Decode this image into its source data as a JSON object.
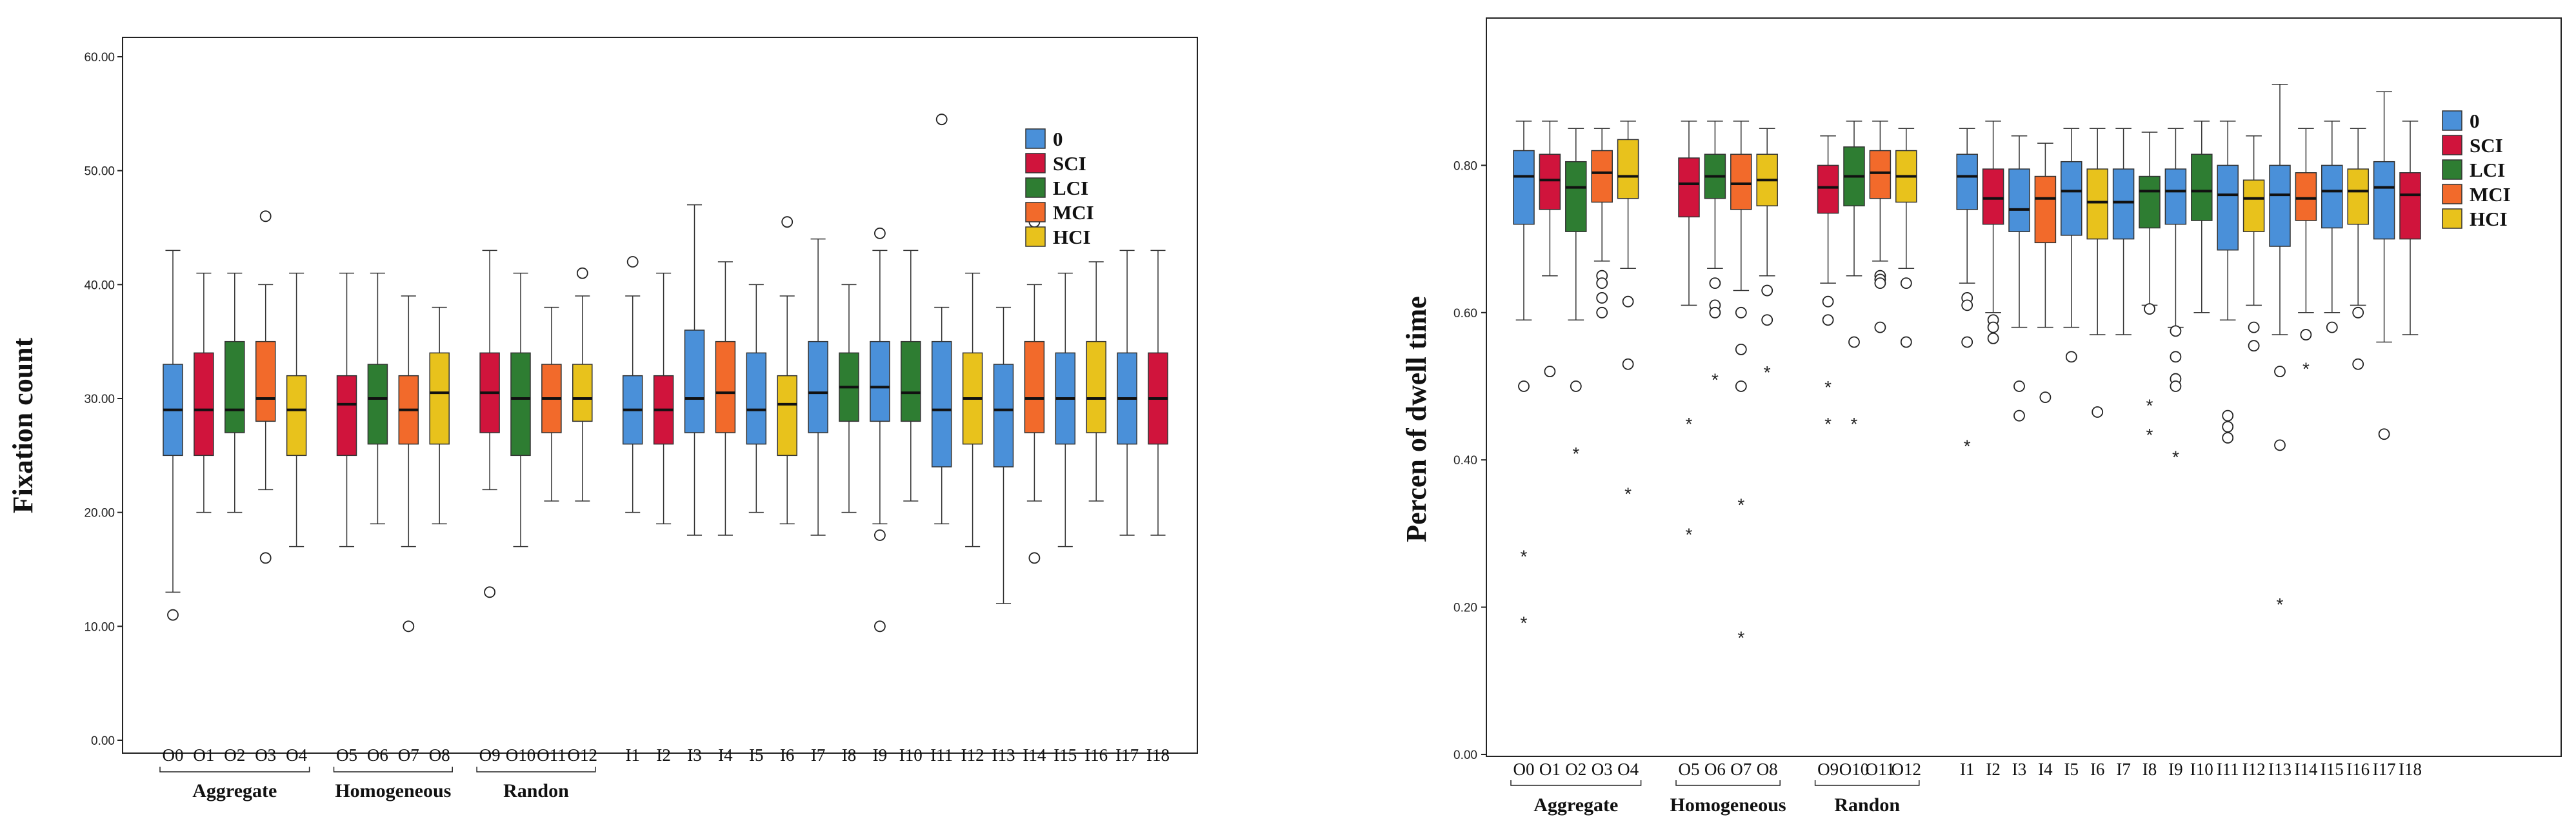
{
  "colors": {
    "0": "#4a90d9",
    "SCI": "#d0143c",
    "LCI": "#2e7d32",
    "MCI": "#f26a2b",
    "HCI": "#e8c21c"
  },
  "chart_data": [
    {
      "type": "boxplot",
      "ylabel": "Fixation count",
      "ylim": [
        0,
        60
      ],
      "yticks": [
        "0.00",
        "10.00",
        "20.00",
        "30.00",
        "40.00",
        "50.00",
        "60.00"
      ],
      "legend": [
        "0",
        "SCI",
        "LCI",
        "MCI",
        "HCI"
      ],
      "legend_position": "top-right",
      "groups": [
        {
          "label": "Aggregate",
          "categories": [
            "O0",
            "O1",
            "O2",
            "O3",
            "O4"
          ]
        },
        {
          "label": "Homogeneous",
          "categories": [
            "O5",
            "O6",
            "O7",
            "O8"
          ]
        },
        {
          "label": "Randon",
          "categories": [
            "O9",
            "O10",
            "O11",
            "O12"
          ]
        },
        {
          "label": "",
          "categories": [
            "I1",
            "I2",
            "I3",
            "I4",
            "I5",
            "I6",
            "I7",
            "I8",
            "I9",
            "I10",
            "I11",
            "I12",
            "I13",
            "I14",
            "I15",
            "I16",
            "I17",
            "I18"
          ]
        }
      ],
      "boxes": [
        {
          "label": "O0",
          "color_key": "0",
          "min": 13,
          "q1": 25,
          "median": 29,
          "q3": 33,
          "max": 43,
          "outliers": [
            11
          ],
          "extremes": []
        },
        {
          "label": "O1",
          "color_key": "SCI",
          "min": 20,
          "q1": 25,
          "median": 29,
          "q3": 34,
          "max": 41,
          "outliers": [],
          "extremes": []
        },
        {
          "label": "O2",
          "color_key": "LCI",
          "min": 20,
          "q1": 27,
          "median": 29,
          "q3": 35,
          "max": 41,
          "outliers": [],
          "extremes": []
        },
        {
          "label": "O3",
          "color_key": "MCI",
          "min": 22,
          "q1": 28,
          "median": 30,
          "q3": 35,
          "max": 40,
          "outliers": [
            46,
            16
          ],
          "extremes": []
        },
        {
          "label": "O4",
          "color_key": "HCI",
          "min": 17,
          "q1": 25,
          "median": 29,
          "q3": 32,
          "max": 41,
          "outliers": [],
          "extremes": []
        },
        {
          "label": "O5",
          "color_key": "SCI",
          "min": 17,
          "q1": 25,
          "median": 29.5,
          "q3": 32,
          "max": 41,
          "outliers": [],
          "extremes": []
        },
        {
          "label": "O6",
          "color_key": "LCI",
          "min": 19,
          "q1": 26,
          "median": 30,
          "q3": 33,
          "max": 41,
          "outliers": [],
          "extremes": []
        },
        {
          "label": "O7",
          "color_key": "MCI",
          "min": 17,
          "q1": 26,
          "median": 29,
          "q3": 32,
          "max": 39,
          "outliers": [
            10
          ],
          "extremes": []
        },
        {
          "label": "O8",
          "color_key": "HCI",
          "min": 19,
          "q1": 26,
          "median": 30.5,
          "q3": 34,
          "max": 38,
          "outliers": [],
          "extremes": []
        },
        {
          "label": "O9",
          "color_key": "SCI",
          "min": 22,
          "q1": 27,
          "median": 30.5,
          "q3": 34,
          "max": 43,
          "outliers": [
            13
          ],
          "extremes": []
        },
        {
          "label": "O10",
          "color_key": "LCI",
          "min": 17,
          "q1": 25,
          "median": 30,
          "q3": 34,
          "max": 41,
          "outliers": [],
          "extremes": []
        },
        {
          "label": "O11",
          "color_key": "MCI",
          "min": 21,
          "q1": 27,
          "median": 30,
          "q3": 33,
          "max": 38,
          "outliers": [],
          "extremes": []
        },
        {
          "label": "O12",
          "color_key": "HCI",
          "min": 21,
          "q1": 28,
          "median": 30,
          "q3": 33,
          "max": 39,
          "outliers": [
            41
          ],
          "extremes": []
        },
        {
          "label": "I1",
          "color_key": "0",
          "min": 20,
          "q1": 26,
          "median": 29,
          "q3": 32,
          "max": 39,
          "outliers": [
            42
          ],
          "extremes": []
        },
        {
          "label": "I2",
          "color_key": "SCI",
          "min": 19,
          "q1": 26,
          "median": 29,
          "q3": 32,
          "max": 41,
          "outliers": [],
          "extremes": []
        },
        {
          "label": "I3",
          "color_key": "0",
          "min": 18,
          "q1": 27,
          "median": 30,
          "q3": 36,
          "max": 47,
          "outliers": [],
          "extremes": []
        },
        {
          "label": "I4",
          "color_key": "MCI",
          "min": 18,
          "q1": 27,
          "median": 30.5,
          "q3": 35,
          "max": 42,
          "outliers": [],
          "extremes": []
        },
        {
          "label": "I5",
          "color_key": "0",
          "min": 20,
          "q1": 26,
          "median": 29,
          "q3": 34,
          "max": 40,
          "outliers": [],
          "extremes": []
        },
        {
          "label": "I6",
          "color_key": "HCI",
          "min": 19,
          "q1": 25,
          "median": 29.5,
          "q3": 32,
          "max": 39,
          "outliers": [
            45.5
          ],
          "extremes": []
        },
        {
          "label": "I7",
          "color_key": "0",
          "min": 18,
          "q1": 27,
          "median": 30.5,
          "q3": 35,
          "max": 44,
          "outliers": [],
          "extremes": []
        },
        {
          "label": "I8",
          "color_key": "LCI",
          "min": 20,
          "q1": 28,
          "median": 31,
          "q3": 34,
          "max": 40,
          "outliers": [],
          "extremes": []
        },
        {
          "label": "I9",
          "color_key": "0",
          "min": 19,
          "q1": 28,
          "median": 31,
          "q3": 35,
          "max": 43,
          "outliers": [
            44.5,
            18,
            10
          ],
          "extremes": []
        },
        {
          "label": "I10",
          "color_key": "LCI",
          "min": 21,
          "q1": 28,
          "median": 30.5,
          "q3": 35,
          "max": 43,
          "outliers": [],
          "extremes": []
        },
        {
          "label": "I11",
          "color_key": "0",
          "min": 19,
          "q1": 24,
          "median": 29,
          "q3": 35,
          "max": 38,
          "outliers": [
            54.5
          ],
          "extremes": []
        },
        {
          "label": "I12",
          "color_key": "HCI",
          "min": 17,
          "q1": 26,
          "median": 30,
          "q3": 34,
          "max": 41,
          "outliers": [],
          "extremes": []
        },
        {
          "label": "I13",
          "color_key": "0",
          "min": 12,
          "q1": 24,
          "median": 29,
          "q3": 33,
          "max": 38,
          "outliers": [],
          "extremes": []
        },
        {
          "label": "I14",
          "color_key": "MCI",
          "min": 21,
          "q1": 27,
          "median": 30,
          "q3": 35,
          "max": 40,
          "outliers": [
            45.5,
            16
          ],
          "extremes": []
        },
        {
          "label": "I15",
          "color_key": "0",
          "min": 17,
          "q1": 26,
          "median": 30,
          "q3": 34,
          "max": 41,
          "outliers": [],
          "extremes": []
        },
        {
          "label": "I16",
          "color_key": "HCI",
          "min": 21,
          "q1": 27,
          "median": 30,
          "q3": 35,
          "max": 42,
          "outliers": [],
          "extremes": []
        },
        {
          "label": "I17",
          "color_key": "0",
          "min": 18,
          "q1": 26,
          "median": 30,
          "q3": 34,
          "max": 43,
          "outliers": [],
          "extremes": []
        },
        {
          "label": "I18",
          "color_key": "SCI",
          "min": 18,
          "q1": 26,
          "median": 30,
          "q3": 34,
          "max": 43,
          "outliers": [],
          "extremes": []
        }
      ]
    },
    {
      "type": "boxplot",
      "ylabel": "Percen of dwell time",
      "ylim": [
        0,
        1
      ],
      "yticks": [
        "0.00",
        "0.20",
        "0.40",
        "0.60",
        "0.80"
      ],
      "legend": [
        "0",
        "SCI",
        "LCI",
        "MCI",
        "HCI"
      ],
      "legend_position": "top-right",
      "groups": [
        {
          "label": "Aggregate",
          "categories": [
            "O0",
            "O1",
            "O2",
            "O3",
            "O4"
          ]
        },
        {
          "label": "Homogeneous",
          "categories": [
            "O5",
            "O6",
            "O7",
            "O8"
          ]
        },
        {
          "label": "Randon",
          "categories": [
            "O9",
            "O10",
            "O11",
            "O12"
          ]
        },
        {
          "label": "",
          "categories": [
            "I1",
            "I2",
            "I3",
            "I4",
            "I5",
            "I6",
            "I7",
            "I8",
            "I9",
            "I10",
            "I11",
            "I12",
            "I13",
            "I14",
            "I15",
            "I16",
            "I17",
            "I18"
          ]
        }
      ],
      "boxes": [
        {
          "label": "O0",
          "color_key": "0",
          "min": 0.59,
          "q1": 0.72,
          "median": 0.785,
          "q3": 0.82,
          "max": 0.86,
          "outliers": [
            0.5
          ],
          "extremes": [
            0.27,
            0.18
          ]
        },
        {
          "label": "O1",
          "color_key": "SCI",
          "min": 0.65,
          "q1": 0.74,
          "median": 0.78,
          "q3": 0.815,
          "max": 0.86,
          "outliers": [
            0.52
          ],
          "extremes": []
        },
        {
          "label": "O2",
          "color_key": "LCI",
          "min": 0.59,
          "q1": 0.71,
          "median": 0.77,
          "q3": 0.805,
          "max": 0.85,
          "outliers": [
            0.5
          ],
          "extremes": [
            0.41
          ]
        },
        {
          "label": "O3",
          "color_key": "MCI",
          "min": 0.67,
          "q1": 0.75,
          "median": 0.79,
          "q3": 0.82,
          "max": 0.85,
          "outliers": [
            0.65,
            0.64,
            0.62,
            0.6
          ],
          "extremes": []
        },
        {
          "label": "O4",
          "color_key": "HCI",
          "min": 0.66,
          "q1": 0.755,
          "median": 0.785,
          "q3": 0.835,
          "max": 0.86,
          "outliers": [
            0.615,
            0.53
          ],
          "extremes": [
            0.355
          ]
        },
        {
          "label": "O5",
          "color_key": "SCI",
          "min": 0.61,
          "q1": 0.73,
          "median": 0.775,
          "q3": 0.81,
          "max": 0.86,
          "outliers": [],
          "extremes": [
            0.45,
            0.3
          ]
        },
        {
          "label": "O6",
          "color_key": "LCI",
          "min": 0.66,
          "q1": 0.755,
          "median": 0.785,
          "q3": 0.815,
          "max": 0.86,
          "outliers": [
            0.64,
            0.61,
            0.6
          ],
          "extremes": [
            0.51
          ]
        },
        {
          "label": "O7",
          "color_key": "MCI",
          "min": 0.63,
          "q1": 0.74,
          "median": 0.775,
          "q3": 0.815,
          "max": 0.86,
          "outliers": [
            0.6,
            0.55,
            0.5
          ],
          "extremes": [
            0.34,
            0.16
          ]
        },
        {
          "label": "O8",
          "color_key": "HCI",
          "min": 0.65,
          "q1": 0.745,
          "median": 0.78,
          "q3": 0.815,
          "max": 0.85,
          "outliers": [
            0.63,
            0.59
          ],
          "extremes": [
            0.52
          ]
        },
        {
          "label": "O9",
          "color_key": "SCI",
          "min": 0.64,
          "q1": 0.735,
          "median": 0.77,
          "q3": 0.8,
          "max": 0.84,
          "outliers": [
            0.615,
            0.59
          ],
          "extremes": [
            0.5,
            0.45
          ]
        },
        {
          "label": "O10",
          "color_key": "LCI",
          "min": 0.65,
          "q1": 0.745,
          "median": 0.785,
          "q3": 0.825,
          "max": 0.86,
          "outliers": [
            0.56
          ],
          "extremes": [
            0.45
          ]
        },
        {
          "label": "O11",
          "color_key": "MCI",
          "min": 0.67,
          "q1": 0.755,
          "median": 0.79,
          "q3": 0.82,
          "max": 0.86,
          "outliers": [
            0.65,
            0.645,
            0.64,
            0.58
          ],
          "extremes": []
        },
        {
          "label": "O12",
          "color_key": "HCI",
          "min": 0.66,
          "q1": 0.75,
          "median": 0.785,
          "q3": 0.82,
          "max": 0.85,
          "outliers": [
            0.64,
            0.56
          ],
          "extremes": []
        },
        {
          "label": "I1",
          "color_key": "0",
          "min": 0.64,
          "q1": 0.74,
          "median": 0.785,
          "q3": 0.815,
          "max": 0.85,
          "outliers": [
            0.62,
            0.61,
            0.56
          ],
          "extremes": [
            0.42
          ]
        },
        {
          "label": "I2",
          "color_key": "SCI",
          "min": 0.6,
          "q1": 0.72,
          "median": 0.755,
          "q3": 0.795,
          "max": 0.86,
          "outliers": [
            0.59,
            0.58,
            0.565
          ],
          "extremes": []
        },
        {
          "label": "I3",
          "color_key": "0",
          "min": 0.58,
          "q1": 0.71,
          "median": 0.74,
          "q3": 0.795,
          "max": 0.84,
          "outliers": [
            0.5,
            0.46
          ],
          "extremes": []
        },
        {
          "label": "I4",
          "color_key": "MCI",
          "min": 0.58,
          "q1": 0.695,
          "median": 0.755,
          "q3": 0.785,
          "max": 0.83,
          "outliers": [
            0.485
          ],
          "extremes": []
        },
        {
          "label": "I5",
          "color_key": "0",
          "min": 0.58,
          "q1": 0.705,
          "median": 0.765,
          "q3": 0.805,
          "max": 0.85,
          "outliers": [
            0.54
          ],
          "extremes": []
        },
        {
          "label": "I6",
          "color_key": "HCI",
          "min": 0.57,
          "q1": 0.7,
          "median": 0.75,
          "q3": 0.795,
          "max": 0.85,
          "outliers": [
            0.465
          ],
          "extremes": []
        },
        {
          "label": "I7",
          "color_key": "0",
          "min": 0.57,
          "q1": 0.7,
          "median": 0.75,
          "q3": 0.795,
          "max": 0.85,
          "outliers": [],
          "extremes": []
        },
        {
          "label": "I8",
          "color_key": "LCI",
          "min": 0.61,
          "q1": 0.715,
          "median": 0.765,
          "q3": 0.785,
          "max": 0.845,
          "outliers": [
            0.605
          ],
          "extremes": [
            0.475,
            0.435
          ]
        },
        {
          "label": "I9",
          "color_key": "0",
          "min": 0.58,
          "q1": 0.72,
          "median": 0.765,
          "q3": 0.795,
          "max": 0.85,
          "outliers": [
            0.575,
            0.54,
            0.51,
            0.5
          ],
          "extremes": [
            0.405
          ]
        },
        {
          "label": "I10",
          "color_key": "LCI",
          "min": 0.6,
          "q1": 0.725,
          "median": 0.765,
          "q3": 0.815,
          "max": 0.86,
          "outliers": [],
          "extremes": []
        },
        {
          "label": "I11",
          "color_key": "0",
          "min": 0.59,
          "q1": 0.685,
          "median": 0.76,
          "q3": 0.8,
          "max": 0.86,
          "outliers": [
            0.46,
            0.445,
            0.43
          ],
          "extremes": []
        },
        {
          "label": "I12",
          "color_key": "HCI",
          "min": 0.61,
          "q1": 0.71,
          "median": 0.755,
          "q3": 0.78,
          "max": 0.84,
          "outliers": [
            0.58,
            0.555
          ],
          "extremes": []
        },
        {
          "label": "I13",
          "color_key": "0",
          "min": 0.57,
          "q1": 0.69,
          "median": 0.76,
          "q3": 0.8,
          "max": 0.91,
          "outliers": [
            0.52,
            0.42
          ],
          "extremes": [
            0.205
          ]
        },
        {
          "label": "I14",
          "color_key": "MCI",
          "min": 0.6,
          "q1": 0.725,
          "median": 0.755,
          "q3": 0.79,
          "max": 0.85,
          "outliers": [
            0.57
          ],
          "extremes": [
            0.525
          ]
        },
        {
          "label": "I15",
          "color_key": "0",
          "min": 0.6,
          "q1": 0.715,
          "median": 0.765,
          "q3": 0.8,
          "max": 0.86,
          "outliers": [
            0.58
          ],
          "extremes": []
        },
        {
          "label": "I16",
          "color_key": "HCI",
          "min": 0.61,
          "q1": 0.72,
          "median": 0.765,
          "q3": 0.795,
          "max": 0.85,
          "outliers": [
            0.6,
            0.53
          ],
          "extremes": []
        },
        {
          "label": "I17",
          "color_key": "0",
          "min": 0.56,
          "q1": 0.7,
          "median": 0.77,
          "q3": 0.805,
          "max": 0.9,
          "outliers": [
            0.435
          ],
          "extremes": []
        },
        {
          "label": "I18",
          "color_key": "SCI",
          "min": 0.57,
          "q1": 0.7,
          "median": 0.76,
          "q3": 0.79,
          "max": 0.86,
          "outliers": [],
          "extremes": []
        }
      ]
    }
  ]
}
